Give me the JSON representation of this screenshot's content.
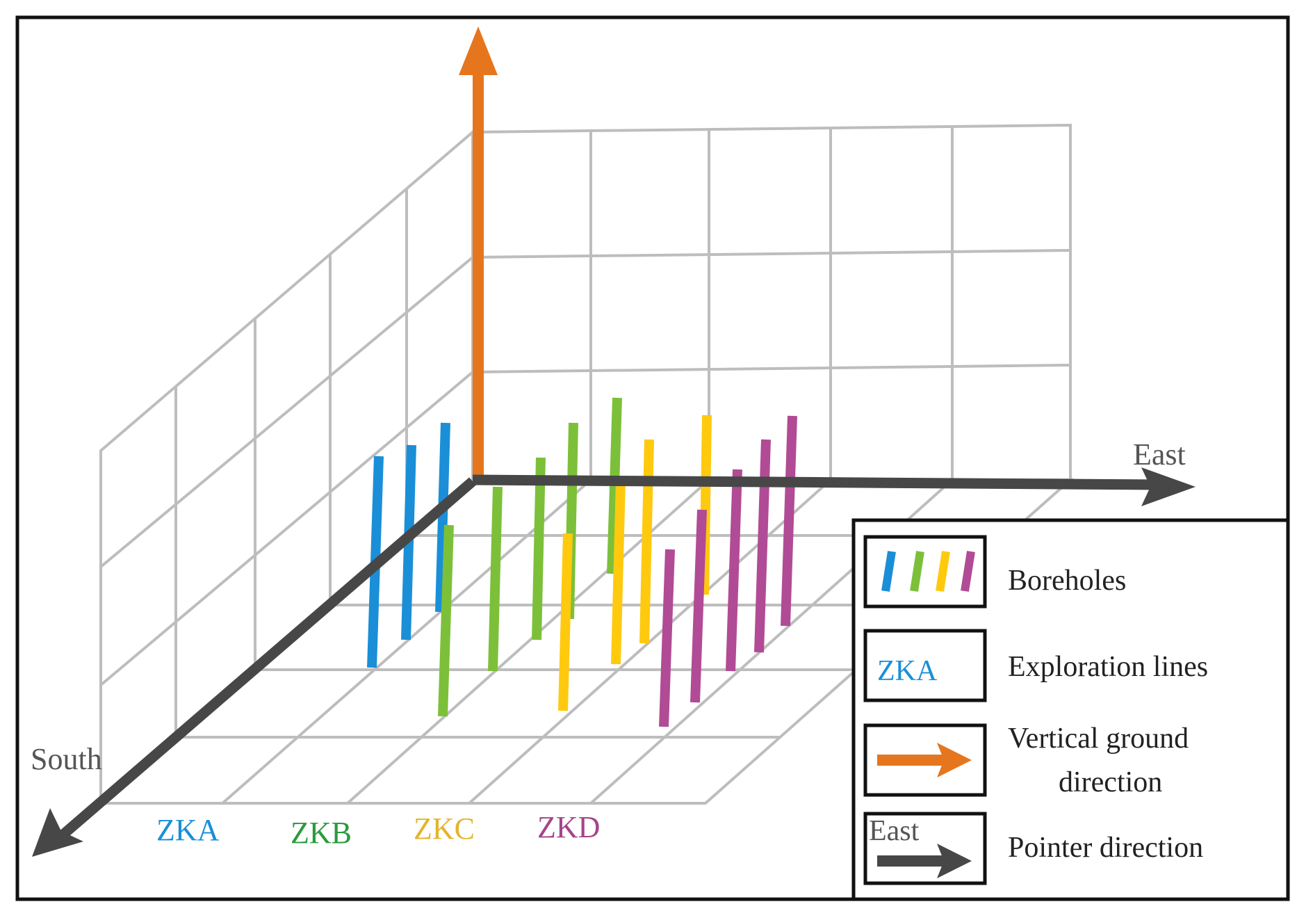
{
  "axes": {
    "east_label": "East",
    "south_label": "South"
  },
  "exploration_lines": [
    {
      "label": "ZKA",
      "color": "#1a8fd8"
    },
    {
      "label": "ZKB",
      "color": "#2b9a3f"
    },
    {
      "label": "ZKC",
      "color": "#e3b52a"
    },
    {
      "label": "ZKD",
      "color": "#a54589"
    }
  ],
  "borehole_colors": {
    "ZKA": "#1a8fd8",
    "ZKB": "#7cc03a",
    "ZKC": "#ffc90e",
    "ZKD": "#b14b96"
  },
  "colors": {
    "vertical_arrow": "#e6761e",
    "pointer_arrow": "#474747",
    "grid": "#bdbdbd",
    "frame": "#111111"
  },
  "legend": {
    "items": [
      {
        "icon": "boreholes-icon",
        "label": "Boreholes"
      },
      {
        "icon": "exploration-lines-icon",
        "icon_text": "ZKA",
        "label": "Exploration lines"
      },
      {
        "icon": "vertical-arrow-icon",
        "label_line1": "Vertical ground",
        "label_line2": "direction"
      },
      {
        "icon": "pointer-arrow-icon",
        "icon_text": "East",
        "label": "Pointer direction"
      }
    ]
  }
}
